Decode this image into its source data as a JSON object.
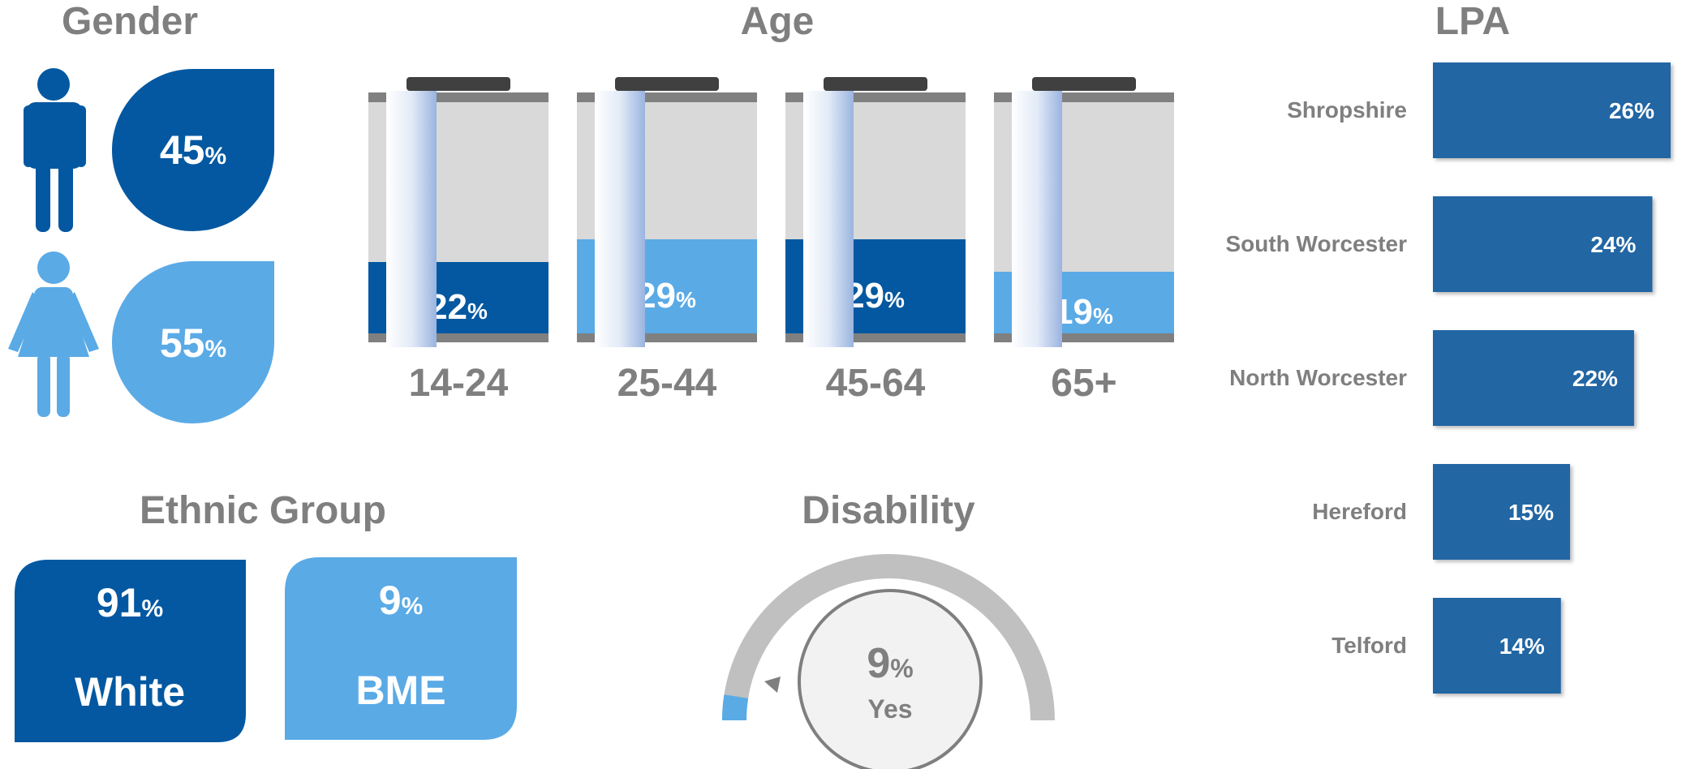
{
  "colors": {
    "dark_blue": "#0458a1",
    "light_blue": "#5aaae6",
    "lpa_blue": "#2066a3",
    "grey_text": "#7f7f7f",
    "battery_bg": "#d9d9d9",
    "battery_cap": "#404040",
    "gauge_grey": "#c0c0c0",
    "gauge_center": "#f2f2f2"
  },
  "gender": {
    "title": "Gender",
    "male": {
      "icon": "male-person-icon",
      "value": "45",
      "unit": "%"
    },
    "female": {
      "icon": "female-person-icon",
      "value": "55",
      "unit": "%"
    }
  },
  "age": {
    "title": "Age",
    "groups": [
      {
        "label": "14-24",
        "value": "22",
        "unit": "%",
        "fraction": 0.22,
        "color": "dark_blue",
        "shown": "22"
      },
      {
        "label": "25-44",
        "value": "29",
        "unit": "%",
        "fraction": 0.29,
        "color": "light_blue",
        "shown": "29"
      },
      {
        "label": "45-64",
        "value": "29",
        "unit": "%",
        "fraction": 0.29,
        "color": "dark_blue",
        "shown": "29"
      },
      {
        "label": "65+",
        "value": "19",
        "unit": "%",
        "fraction": 0.19,
        "color": "light_blue",
        "shown": "19"
      }
    ]
  },
  "ethnic": {
    "title": "Ethnic Group",
    "white": {
      "value": "91",
      "unit": "%",
      "label": "White"
    },
    "bme": {
      "value": "9",
      "unit": "%",
      "label": "BME"
    }
  },
  "disability": {
    "title": "Disability",
    "value": "9",
    "unit": "%",
    "label": "Yes",
    "fraction": 0.09
  },
  "chart_data": [
    {
      "type": "bar",
      "title": "Gender",
      "categories": [
        "Male",
        "Female"
      ],
      "values": [
        45,
        55
      ]
    },
    {
      "type": "bar",
      "title": "Age",
      "categories": [
        "14-24",
        "25-44",
        "45-64",
        "65+"
      ],
      "values": [
        22,
        29,
        29,
        19
      ],
      "ylim": [
        0,
        100
      ]
    },
    {
      "type": "bar",
      "title": "Ethnic Group",
      "categories": [
        "White",
        "BME"
      ],
      "values": [
        91,
        9
      ]
    },
    {
      "type": "pie",
      "title": "Disability",
      "categories": [
        "Yes"
      ],
      "values": [
        9
      ]
    },
    {
      "type": "bar",
      "title": "LPA",
      "categories": [
        "Shropshire",
        "South Worcester",
        "North Worcester",
        "Hereford",
        "Telford"
      ],
      "values": [
        26,
        24,
        22,
        15,
        14
      ],
      "labels": [
        "26%",
        "24%",
        "22%",
        "15%",
        "14%"
      ]
    }
  ],
  "lpa": {
    "title": "LPA",
    "items": [
      {
        "label": "Shropshire",
        "value": 26,
        "text": "26%"
      },
      {
        "label": "South Worcester",
        "value": 24,
        "text": "24%"
      },
      {
        "label": "North Worcester",
        "value": 22,
        "text": "22%"
      },
      {
        "label": "Hereford",
        "value": 15,
        "text": "15%"
      },
      {
        "label": "Telford",
        "value": 14,
        "text": "14%"
      }
    ]
  }
}
